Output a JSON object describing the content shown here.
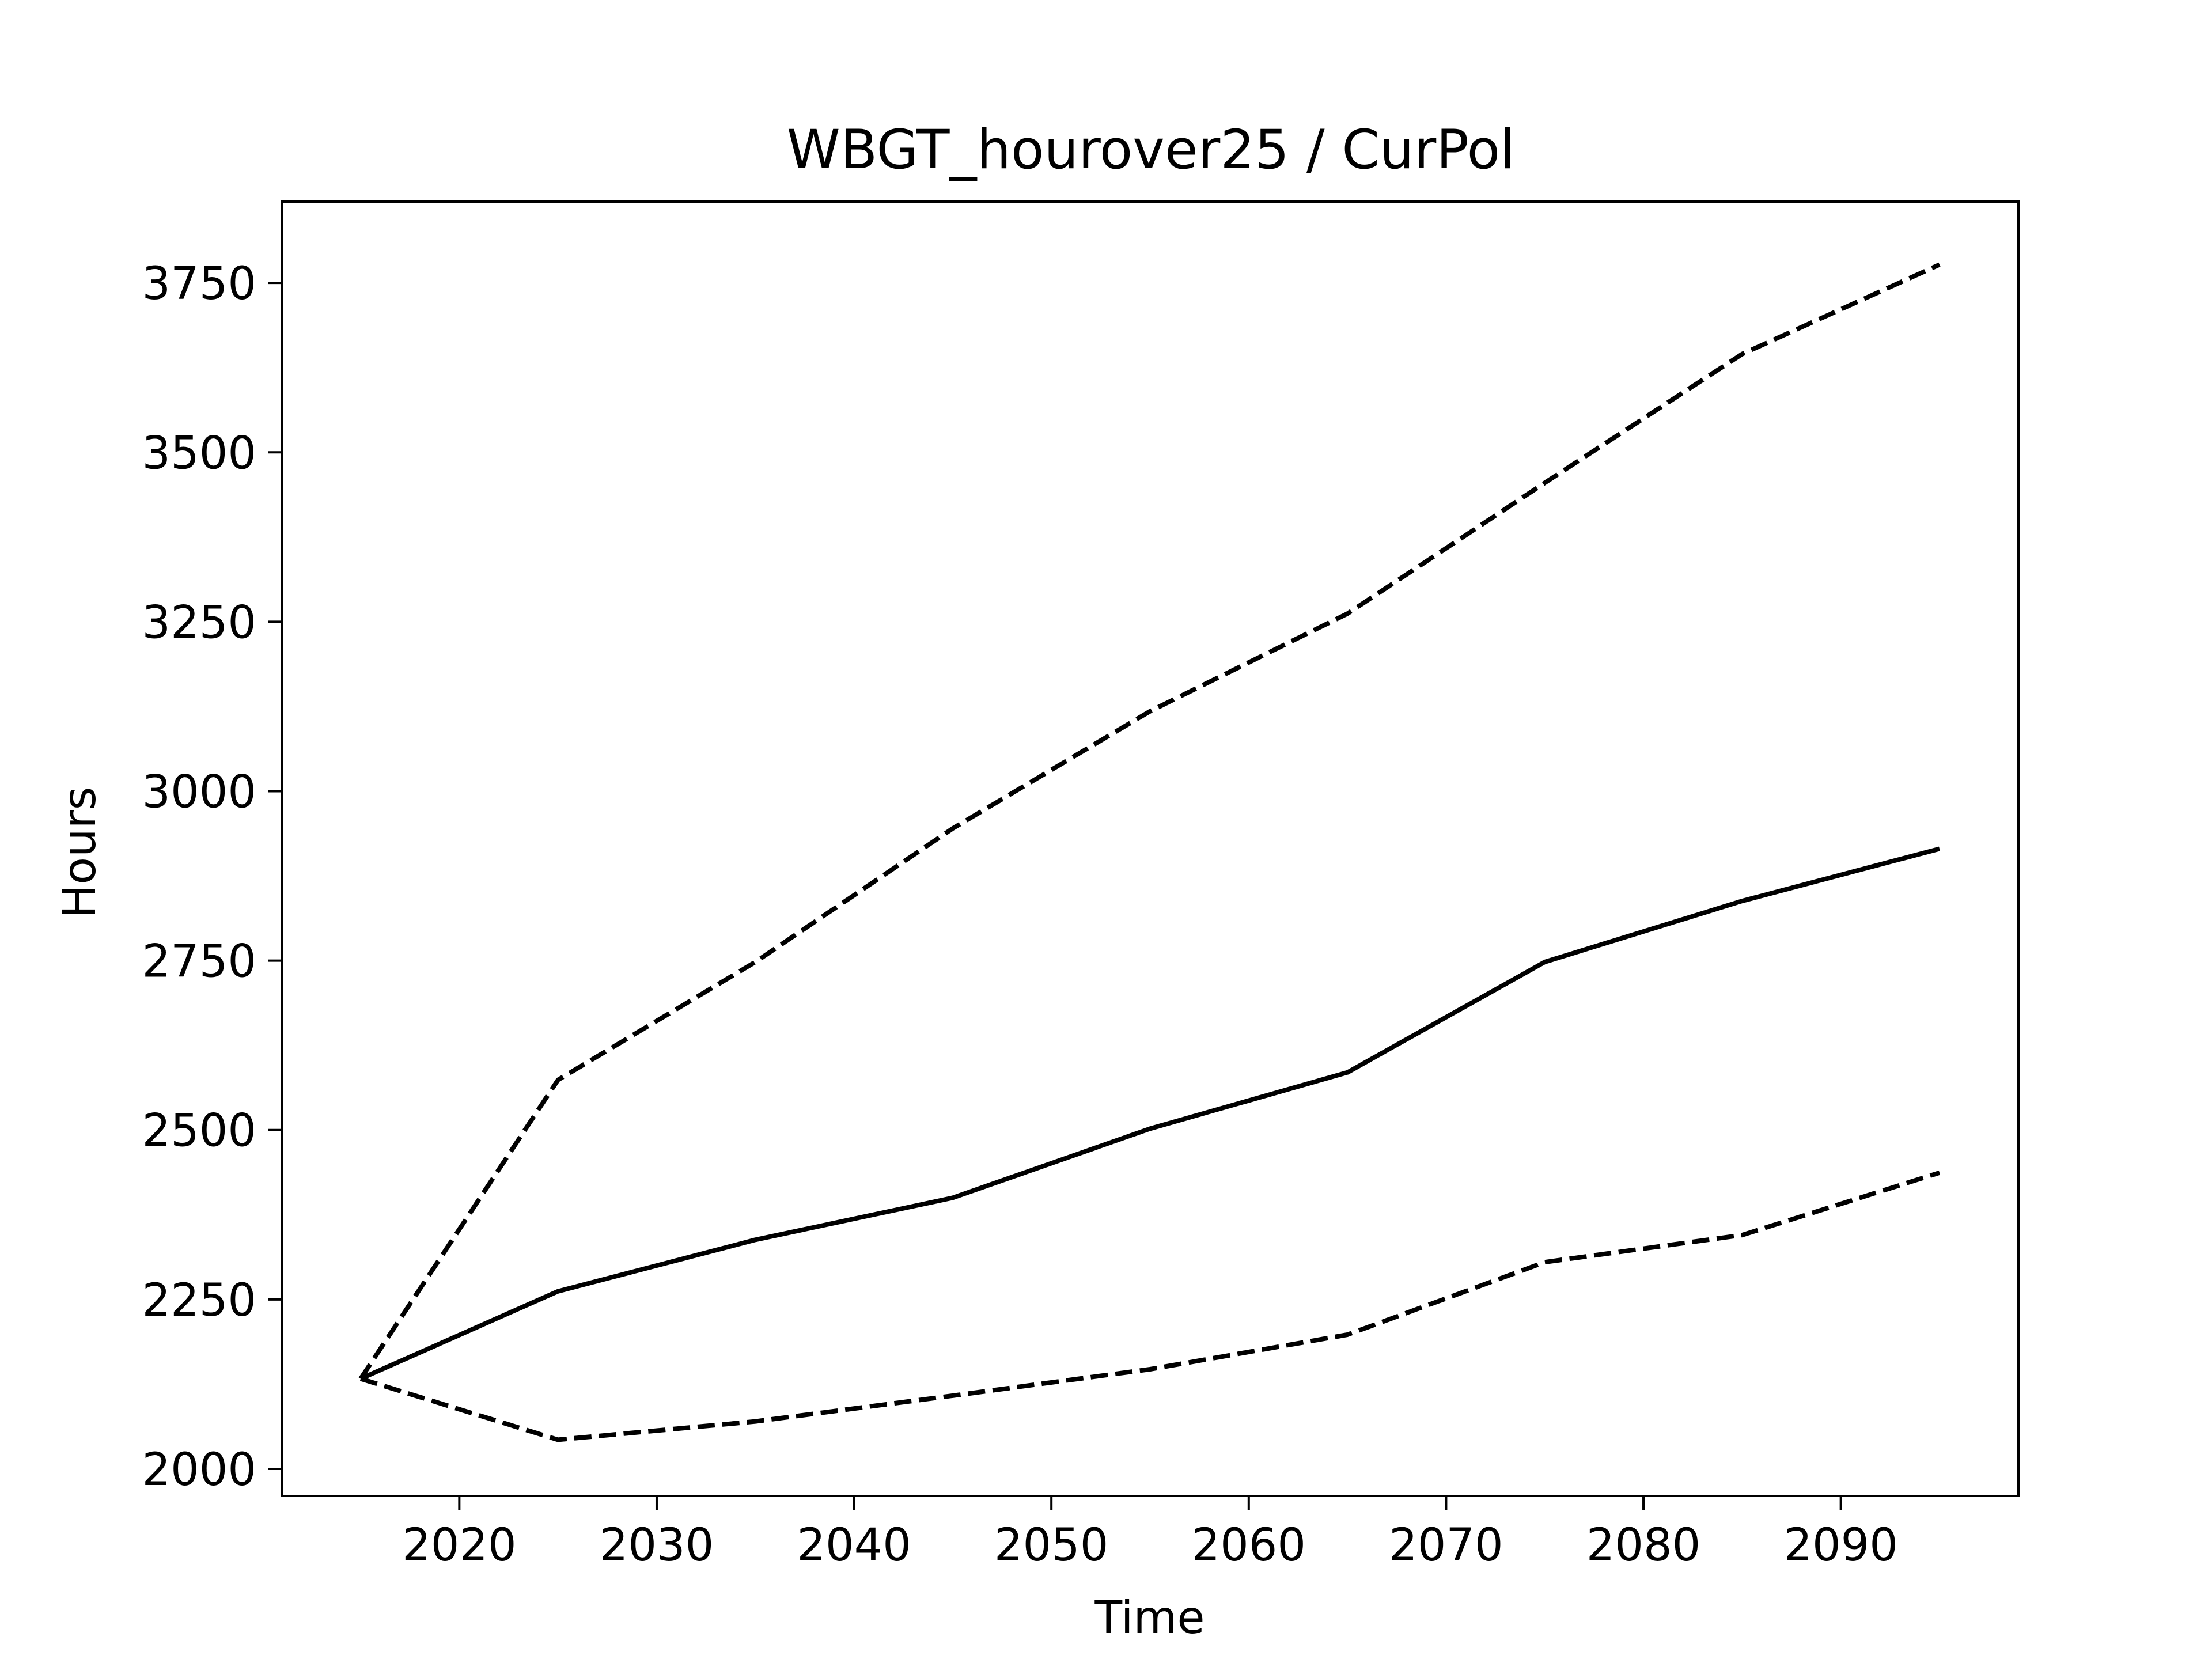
{
  "chart_data": {
    "type": "line",
    "title": "WBGT_hourover25 / CurPol",
    "xlabel": "Time",
    "ylabel": "Hours",
    "xlim": [
      2011,
      2099
    ],
    "ylim": [
      1960,
      3870
    ],
    "xticks": [
      2020,
      2030,
      2040,
      2050,
      2060,
      2070,
      2080,
      2090
    ],
    "yticks": [
      2000,
      2250,
      2500,
      2750,
      3000,
      3250,
      3500,
      3750
    ],
    "x": [
      2015,
      2025,
      2035,
      2045,
      2055,
      2065,
      2075,
      2085,
      2095
    ],
    "series": [
      {
        "style": "solid",
        "color": "#000000",
        "values": [
          2133,
          2262,
          2338,
          2400,
          2502,
          2585,
          2748,
          2838,
          2915
        ]
      },
      {
        "style": "dashed",
        "color": "#000000",
        "values": [
          2133,
          2574,
          2748,
          2945,
          3118,
          3262,
          3455,
          3645,
          3777
        ]
      },
      {
        "style": "dashed",
        "color": "#000000",
        "values": [
          2133,
          2043,
          2070,
          2108,
          2147,
          2198,
          2305,
          2345,
          2437
        ]
      }
    ],
    "grid": false,
    "legend": "none"
  }
}
